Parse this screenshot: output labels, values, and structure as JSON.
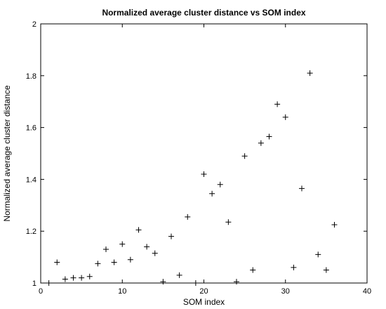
{
  "chart_data": {
    "type": "scatter",
    "title": "Normalized average cluster distance vs SOM index",
    "xlabel": "SOM index",
    "ylabel": "Normalized average cluster distance",
    "xlim": [
      0,
      40
    ],
    "ylim": [
      1,
      2
    ],
    "xticks": [
      "0",
      "10",
      "20",
      "30",
      "40"
    ],
    "yticks": [
      "1",
      "1.2",
      "1.4",
      "1.6",
      "1.8",
      "2"
    ],
    "grid": false,
    "marker": "+",
    "x": [
      1,
      2,
      3,
      4,
      5,
      6,
      7,
      8,
      9,
      10,
      11,
      12,
      13,
      14,
      15,
      16,
      17,
      18,
      19,
      20,
      21,
      22,
      23,
      24,
      25,
      26,
      27,
      28,
      29,
      30,
      31,
      32,
      33,
      34,
      35,
      36
    ],
    "y": [
      1.0,
      1.08,
      1.015,
      1.02,
      1.02,
      1.025,
      1.075,
      1.13,
      1.08,
      1.15,
      1.09,
      1.205,
      1.14,
      1.115,
      1.005,
      1.18,
      1.03,
      1.255,
      1.0,
      1.42,
      1.345,
      1.38,
      1.235,
      1.005,
      1.49,
      1.05,
      1.54,
      1.565,
      1.69,
      1.64,
      1.06,
      1.365,
      1.81,
      1.11,
      1.05,
      1.225
    ]
  }
}
